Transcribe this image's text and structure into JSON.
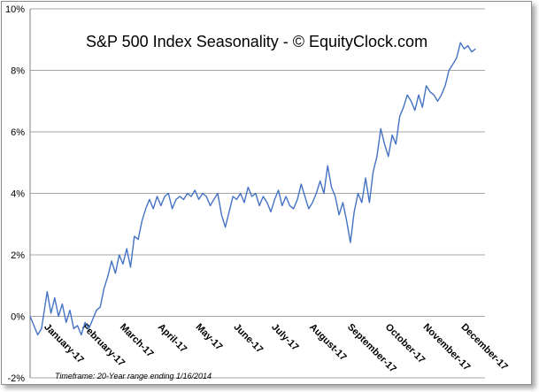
{
  "chart_data": {
    "type": "line",
    "title": "S&P 500 Index Seasonality - © EquityClock.com",
    "footnote": "Timeframe: 20-Year range ending 1/16/2014",
    "xlabel": "",
    "ylabel": "",
    "ylim": [
      -2,
      10
    ],
    "yticks": [
      "-2%",
      "0%",
      "2%",
      "4%",
      "6%",
      "8%",
      "10%"
    ],
    "categories": [
      "January-17",
      "February-17",
      "March-17",
      "April-17",
      "May-17",
      "June-17",
      "July-17",
      "August-17",
      "September-17",
      "October-17",
      "November-17",
      "December-17"
    ],
    "grid": true,
    "line_color": "#4472c4",
    "series": [
      {
        "values": [
          [
            0.0,
            0.0
          ],
          [
            0.1,
            -0.3
          ],
          [
            0.2,
            -0.6
          ],
          [
            0.3,
            -0.4
          ],
          [
            0.45,
            0.8
          ],
          [
            0.55,
            0.1
          ],
          [
            0.65,
            0.6
          ],
          [
            0.75,
            0.0
          ],
          [
            0.85,
            0.4
          ],
          [
            0.95,
            -0.2
          ],
          [
            1.05,
            0.2
          ],
          [
            1.15,
            -0.4
          ],
          [
            1.25,
            -0.3
          ],
          [
            1.35,
            -0.6
          ],
          [
            1.45,
            -0.2
          ],
          [
            1.55,
            -0.4
          ],
          [
            1.65,
            -0.1
          ],
          [
            1.75,
            0.2
          ],
          [
            1.85,
            0.3
          ],
          [
            1.95,
            0.9
          ],
          [
            2.05,
            1.3
          ],
          [
            2.15,
            1.8
          ],
          [
            2.25,
            1.4
          ],
          [
            2.35,
            2.0
          ],
          [
            2.45,
            1.7
          ],
          [
            2.55,
            2.2
          ],
          [
            2.65,
            1.6
          ],
          [
            2.75,
            2.6
          ],
          [
            2.85,
            2.5
          ],
          [
            2.95,
            3.1
          ],
          [
            3.05,
            3.5
          ],
          [
            3.15,
            3.8
          ],
          [
            3.25,
            3.5
          ],
          [
            3.35,
            3.9
          ],
          [
            3.45,
            3.6
          ],
          [
            3.55,
            3.9
          ],
          [
            3.65,
            4.0
          ],
          [
            3.75,
            3.5
          ],
          [
            3.85,
            3.8
          ],
          [
            3.95,
            3.9
          ],
          [
            4.05,
            3.8
          ],
          [
            4.15,
            4.0
          ],
          [
            4.25,
            3.9
          ],
          [
            4.35,
            4.1
          ],
          [
            4.45,
            3.8
          ],
          [
            4.55,
            4.0
          ],
          [
            4.65,
            3.9
          ],
          [
            4.75,
            3.6
          ],
          [
            4.85,
            3.8
          ],
          [
            4.95,
            4.0
          ],
          [
            5.05,
            3.3
          ],
          [
            5.15,
            2.9
          ],
          [
            5.25,
            3.4
          ],
          [
            5.35,
            3.9
          ],
          [
            5.45,
            3.8
          ],
          [
            5.55,
            4.0
          ],
          [
            5.65,
            3.7
          ],
          [
            5.75,
            4.2
          ],
          [
            5.85,
            3.9
          ],
          [
            5.95,
            4.0
          ],
          [
            6.05,
            3.6
          ],
          [
            6.15,
            3.9
          ],
          [
            6.25,
            3.7
          ],
          [
            6.35,
            3.4
          ],
          [
            6.45,
            3.8
          ],
          [
            6.55,
            4.1
          ],
          [
            6.65,
            3.6
          ],
          [
            6.75,
            3.9
          ],
          [
            6.85,
            3.6
          ],
          [
            6.95,
            3.5
          ],
          [
            7.05,
            3.8
          ],
          [
            7.15,
            4.3
          ],
          [
            7.25,
            3.9
          ],
          [
            7.35,
            3.5
          ],
          [
            7.45,
            3.7
          ],
          [
            7.55,
            4.0
          ],
          [
            7.65,
            4.4
          ],
          [
            7.75,
            4.0
          ],
          [
            7.85,
            4.9
          ],
          [
            7.95,
            4.2
          ],
          [
            8.05,
            3.9
          ],
          [
            8.15,
            3.3
          ],
          [
            8.25,
            3.7
          ],
          [
            8.35,
            3.1
          ],
          [
            8.45,
            2.4
          ],
          [
            8.55,
            3.4
          ],
          [
            8.65,
            4.0
          ],
          [
            8.75,
            3.7
          ],
          [
            8.85,
            4.5
          ],
          [
            8.95,
            3.7
          ],
          [
            9.05,
            4.7
          ],
          [
            9.15,
            5.2
          ],
          [
            9.25,
            6.1
          ],
          [
            9.35,
            5.6
          ],
          [
            9.45,
            5.2
          ],
          [
            9.55,
            5.9
          ],
          [
            9.65,
            5.6
          ],
          [
            9.75,
            6.5
          ],
          [
            9.85,
            6.8
          ],
          [
            9.95,
            7.2
          ],
          [
            10.05,
            7.0
          ],
          [
            10.15,
            6.7
          ],
          [
            10.25,
            7.2
          ],
          [
            10.35,
            6.8
          ],
          [
            10.45,
            7.5
          ],
          [
            10.55,
            7.3
          ],
          [
            10.65,
            7.2
          ],
          [
            10.75,
            7.0
          ],
          [
            10.85,
            7.2
          ],
          [
            10.95,
            7.5
          ],
          [
            11.05,
            8.0
          ],
          [
            11.15,
            8.2
          ],
          [
            11.25,
            8.4
          ],
          [
            11.35,
            8.9
          ],
          [
            11.45,
            8.7
          ],
          [
            11.55,
            8.8
          ],
          [
            11.65,
            8.6
          ],
          [
            11.75,
            8.7
          ]
        ]
      }
    ]
  }
}
